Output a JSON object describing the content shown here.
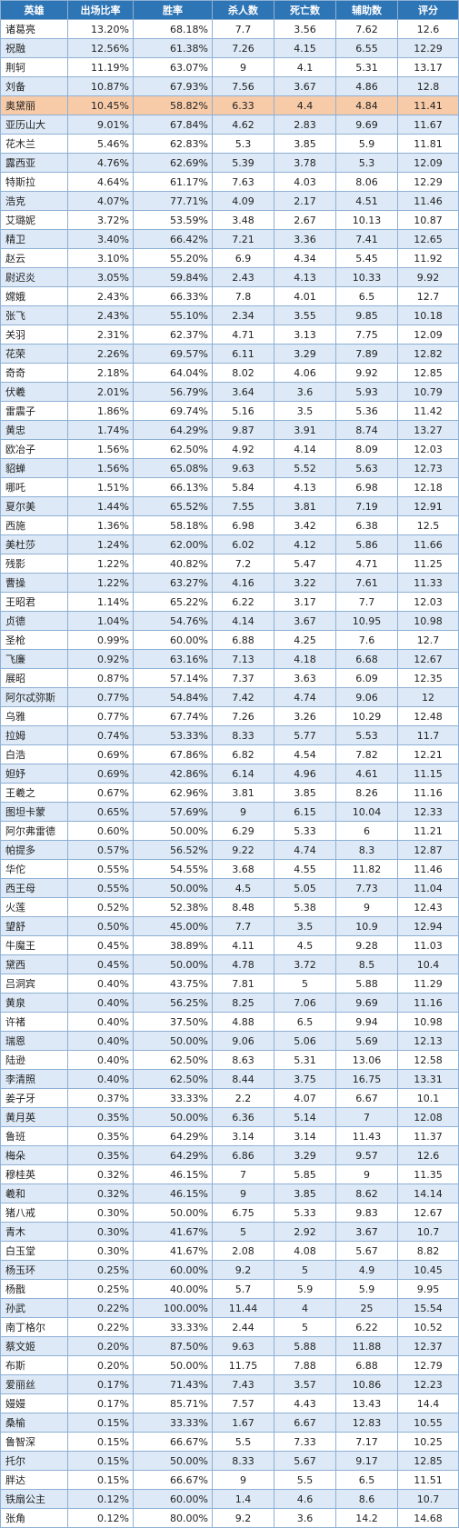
{
  "colors": {
    "header_bg": "#2e75b6",
    "zebra_bg": "#dde9f6",
    "highlight_bg": "#f8cba8",
    "border": "#8eb0d4"
  },
  "headers": [
    "英雄",
    "出场比率",
    "胜率",
    "杀人数",
    "死亡数",
    "辅助数",
    "评分"
  ],
  "highlight_row": 4,
  "rows": [
    [
      "诸葛亮",
      "13.20%",
      "68.18%",
      "7.7",
      "3.56",
      "7.62",
      "12.6"
    ],
    [
      "祝融",
      "12.56%",
      "61.38%",
      "7.26",
      "4.15",
      "6.55",
      "12.29"
    ],
    [
      "荆轲",
      "11.19%",
      "63.07%",
      "9",
      "4.1",
      "5.31",
      "13.17"
    ],
    [
      "刘备",
      "10.87%",
      "67.93%",
      "7.56",
      "3.67",
      "4.86",
      "12.8"
    ],
    [
      "奥黛丽",
      "10.45%",
      "58.82%",
      "6.33",
      "4.4",
      "4.84",
      "11.41"
    ],
    [
      "亚历山大",
      "9.01%",
      "67.84%",
      "4.62",
      "2.83",
      "9.69",
      "11.67"
    ],
    [
      "花木兰",
      "5.46%",
      "62.83%",
      "5.3",
      "3.85",
      "5.9",
      "11.81"
    ],
    [
      "露西亚",
      "4.76%",
      "62.69%",
      "5.39",
      "3.78",
      "5.3",
      "12.09"
    ],
    [
      "特斯拉",
      "4.64%",
      "61.17%",
      "7.63",
      "4.03",
      "8.06",
      "12.29"
    ],
    [
      "浩克",
      "4.07%",
      "77.71%",
      "4.09",
      "2.17",
      "4.51",
      "11.46"
    ],
    [
      "艾璐妮",
      "3.72%",
      "53.59%",
      "3.48",
      "2.67",
      "10.13",
      "10.87"
    ],
    [
      "精卫",
      "3.40%",
      "66.42%",
      "7.21",
      "3.36",
      "7.41",
      "12.65"
    ],
    [
      "赵云",
      "3.10%",
      "55.20%",
      "6.9",
      "4.34",
      "5.45",
      "11.92"
    ],
    [
      "尉迟炎",
      "3.05%",
      "59.84%",
      "2.43",
      "4.13",
      "10.33",
      "9.92"
    ],
    [
      "嫦娥",
      "2.43%",
      "66.33%",
      "7.8",
      "4.01",
      "6.5",
      "12.7"
    ],
    [
      "张飞",
      "2.43%",
      "55.10%",
      "2.34",
      "3.55",
      "9.85",
      "10.18"
    ],
    [
      "关羽",
      "2.31%",
      "62.37%",
      "4.71",
      "3.13",
      "7.75",
      "12.09"
    ],
    [
      "花荣",
      "2.26%",
      "69.57%",
      "6.11",
      "3.29",
      "7.89",
      "12.82"
    ],
    [
      "奇奇",
      "2.18%",
      "64.04%",
      "8.02",
      "4.06",
      "9.92",
      "12.85"
    ],
    [
      "伏羲",
      "2.01%",
      "56.79%",
      "3.64",
      "3.6",
      "5.93",
      "10.79"
    ],
    [
      "雷震子",
      "1.86%",
      "69.74%",
      "5.16",
      "3.5",
      "5.36",
      "11.42"
    ],
    [
      "黄忠",
      "1.74%",
      "64.29%",
      "9.87",
      "3.91",
      "8.74",
      "13.27"
    ],
    [
      "欧冶子",
      "1.56%",
      "62.50%",
      "4.92",
      "4.14",
      "8.09",
      "12.03"
    ],
    [
      "貂蝉",
      "1.56%",
      "65.08%",
      "9.63",
      "5.52",
      "5.63",
      "12.73"
    ],
    [
      "哪吒",
      "1.51%",
      "66.13%",
      "5.84",
      "4.13",
      "6.98",
      "12.18"
    ],
    [
      "夏尔美",
      "1.44%",
      "65.52%",
      "7.55",
      "3.81",
      "7.19",
      "12.91"
    ],
    [
      "西施",
      "1.36%",
      "58.18%",
      "6.98",
      "3.42",
      "6.38",
      "12.5"
    ],
    [
      "美杜莎",
      "1.24%",
      "62.00%",
      "6.02",
      "4.12",
      "5.86",
      "11.66"
    ],
    [
      "残影",
      "1.22%",
      "40.82%",
      "7.2",
      "5.47",
      "4.71",
      "11.25"
    ],
    [
      "曹操",
      "1.22%",
      "63.27%",
      "4.16",
      "3.22",
      "7.61",
      "11.33"
    ],
    [
      "王昭君",
      "1.14%",
      "65.22%",
      "6.22",
      "3.17",
      "7.7",
      "12.03"
    ],
    [
      "贞德",
      "1.04%",
      "54.76%",
      "4.14",
      "3.67",
      "10.95",
      "10.98"
    ],
    [
      "圣枪",
      "0.99%",
      "60.00%",
      "6.88",
      "4.25",
      "7.6",
      "12.7"
    ],
    [
      "飞廉",
      "0.92%",
      "63.16%",
      "7.13",
      "4.18",
      "6.68",
      "12.67"
    ],
    [
      "展昭",
      "0.87%",
      "57.14%",
      "7.37",
      "3.63",
      "6.09",
      "12.35"
    ],
    [
      "阿尔忒弥斯",
      "0.77%",
      "54.84%",
      "7.42",
      "4.74",
      "9.06",
      "12"
    ],
    [
      "乌雅",
      "0.77%",
      "67.74%",
      "7.26",
      "3.26",
      "10.29",
      "12.48"
    ],
    [
      "拉姆",
      "0.74%",
      "53.33%",
      "8.33",
      "5.77",
      "5.53",
      "11.7"
    ],
    [
      "白浩",
      "0.69%",
      "67.86%",
      "6.82",
      "4.54",
      "7.82",
      "12.21"
    ],
    [
      "妲妤",
      "0.69%",
      "42.86%",
      "6.14",
      "4.96",
      "4.61",
      "11.15"
    ],
    [
      "王羲之",
      "0.67%",
      "62.96%",
      "3.81",
      "3.85",
      "8.26",
      "11.16"
    ],
    [
      "图坦卡蒙",
      "0.65%",
      "57.69%",
      "9",
      "6.15",
      "10.04",
      "12.33"
    ],
    [
      "阿尔弗雷德",
      "0.60%",
      "50.00%",
      "6.29",
      "5.33",
      "6",
      "11.21"
    ],
    [
      "帕提多",
      "0.57%",
      "56.52%",
      "9.22",
      "4.74",
      "8.3",
      "12.87"
    ],
    [
      "华佗",
      "0.55%",
      "54.55%",
      "3.68",
      "4.55",
      "11.82",
      "11.46"
    ],
    [
      "西王母",
      "0.55%",
      "50.00%",
      "4.5",
      "5.05",
      "7.73",
      "11.04"
    ],
    [
      "火莲",
      "0.52%",
      "52.38%",
      "8.48",
      "5.38",
      "9",
      "12.43"
    ],
    [
      "望舒",
      "0.50%",
      "45.00%",
      "7.7",
      "3.5",
      "10.9",
      "12.94"
    ],
    [
      "牛魔王",
      "0.45%",
      "38.89%",
      "4.11",
      "4.5",
      "9.28",
      "11.03"
    ],
    [
      "黛西",
      "0.45%",
      "50.00%",
      "4.78",
      "3.72",
      "8.5",
      "10.4"
    ],
    [
      "吕洞宾",
      "0.40%",
      "43.75%",
      "7.81",
      "5",
      "5.88",
      "11.29"
    ],
    [
      "黄泉",
      "0.40%",
      "56.25%",
      "8.25",
      "7.06",
      "9.69",
      "11.16"
    ],
    [
      "许褚",
      "0.40%",
      "37.50%",
      "4.88",
      "6.5",
      "9.94",
      "10.98"
    ],
    [
      "瑞恩",
      "0.40%",
      "50.00%",
      "9.06",
      "5.06",
      "5.69",
      "12.13"
    ],
    [
      "陆逊",
      "0.40%",
      "62.50%",
      "8.63",
      "5.31",
      "13.06",
      "12.58"
    ],
    [
      "李清照",
      "0.40%",
      "62.50%",
      "8.44",
      "3.75",
      "16.75",
      "13.31"
    ],
    [
      "姜子牙",
      "0.37%",
      "33.33%",
      "2.2",
      "4.07",
      "6.67",
      "10.1"
    ],
    [
      "黄月英",
      "0.35%",
      "50.00%",
      "6.36",
      "5.14",
      "7",
      "12.08"
    ],
    [
      "鲁班",
      "0.35%",
      "64.29%",
      "3.14",
      "3.14",
      "11.43",
      "11.37"
    ],
    [
      "梅朵",
      "0.35%",
      "64.29%",
      "6.86",
      "3.29",
      "9.57",
      "12.6"
    ],
    [
      "穆桂英",
      "0.32%",
      "46.15%",
      "7",
      "5.85",
      "9",
      "11.35"
    ],
    [
      "羲和",
      "0.32%",
      "46.15%",
      "9",
      "3.85",
      "8.62",
      "14.14"
    ],
    [
      "猪八戒",
      "0.30%",
      "50.00%",
      "6.75",
      "5.33",
      "9.83",
      "12.67"
    ],
    [
      "青木",
      "0.30%",
      "41.67%",
      "5",
      "2.92",
      "3.67",
      "10.7"
    ],
    [
      "白玉堂",
      "0.30%",
      "41.67%",
      "2.08",
      "4.08",
      "5.67",
      "8.82"
    ],
    [
      "杨玉环",
      "0.25%",
      "60.00%",
      "9.2",
      "5",
      "4.9",
      "10.45"
    ],
    [
      "杨戬",
      "0.25%",
      "40.00%",
      "5.7",
      "5.9",
      "5.9",
      "9.95"
    ],
    [
      "孙武",
      "0.22%",
      "100.00%",
      "11.44",
      "4",
      "25",
      "15.54"
    ],
    [
      "南丁格尔",
      "0.22%",
      "33.33%",
      "2.44",
      "5",
      "6.22",
      "10.52"
    ],
    [
      "蔡文姬",
      "0.20%",
      "87.50%",
      "9.63",
      "5.88",
      "11.88",
      "12.37"
    ],
    [
      "布斯",
      "0.20%",
      "50.00%",
      "11.75",
      "7.88",
      "6.88",
      "12.79"
    ],
    [
      "爱丽丝",
      "0.17%",
      "71.43%",
      "7.43",
      "3.57",
      "10.86",
      "12.23"
    ],
    [
      "嫚嫚",
      "0.17%",
      "85.71%",
      "7.57",
      "4.43",
      "13.43",
      "14.4"
    ],
    [
      "桑榆",
      "0.15%",
      "33.33%",
      "1.67",
      "6.67",
      "12.83",
      "10.55"
    ],
    [
      "鲁智深",
      "0.15%",
      "66.67%",
      "5.5",
      "7.33",
      "7.17",
      "10.25"
    ],
    [
      "托尔",
      "0.15%",
      "50.00%",
      "8.33",
      "5.67",
      "9.17",
      "12.85"
    ],
    [
      "胖达",
      "0.15%",
      "66.67%",
      "9",
      "5.5",
      "6.5",
      "11.51"
    ],
    [
      "铁扇公主",
      "0.12%",
      "60.00%",
      "1.4",
      "4.6",
      "8.6",
      "10.7"
    ],
    [
      "张角",
      "0.12%",
      "80.00%",
      "9.2",
      "3.6",
      "14.2",
      "14.68"
    ]
  ]
}
